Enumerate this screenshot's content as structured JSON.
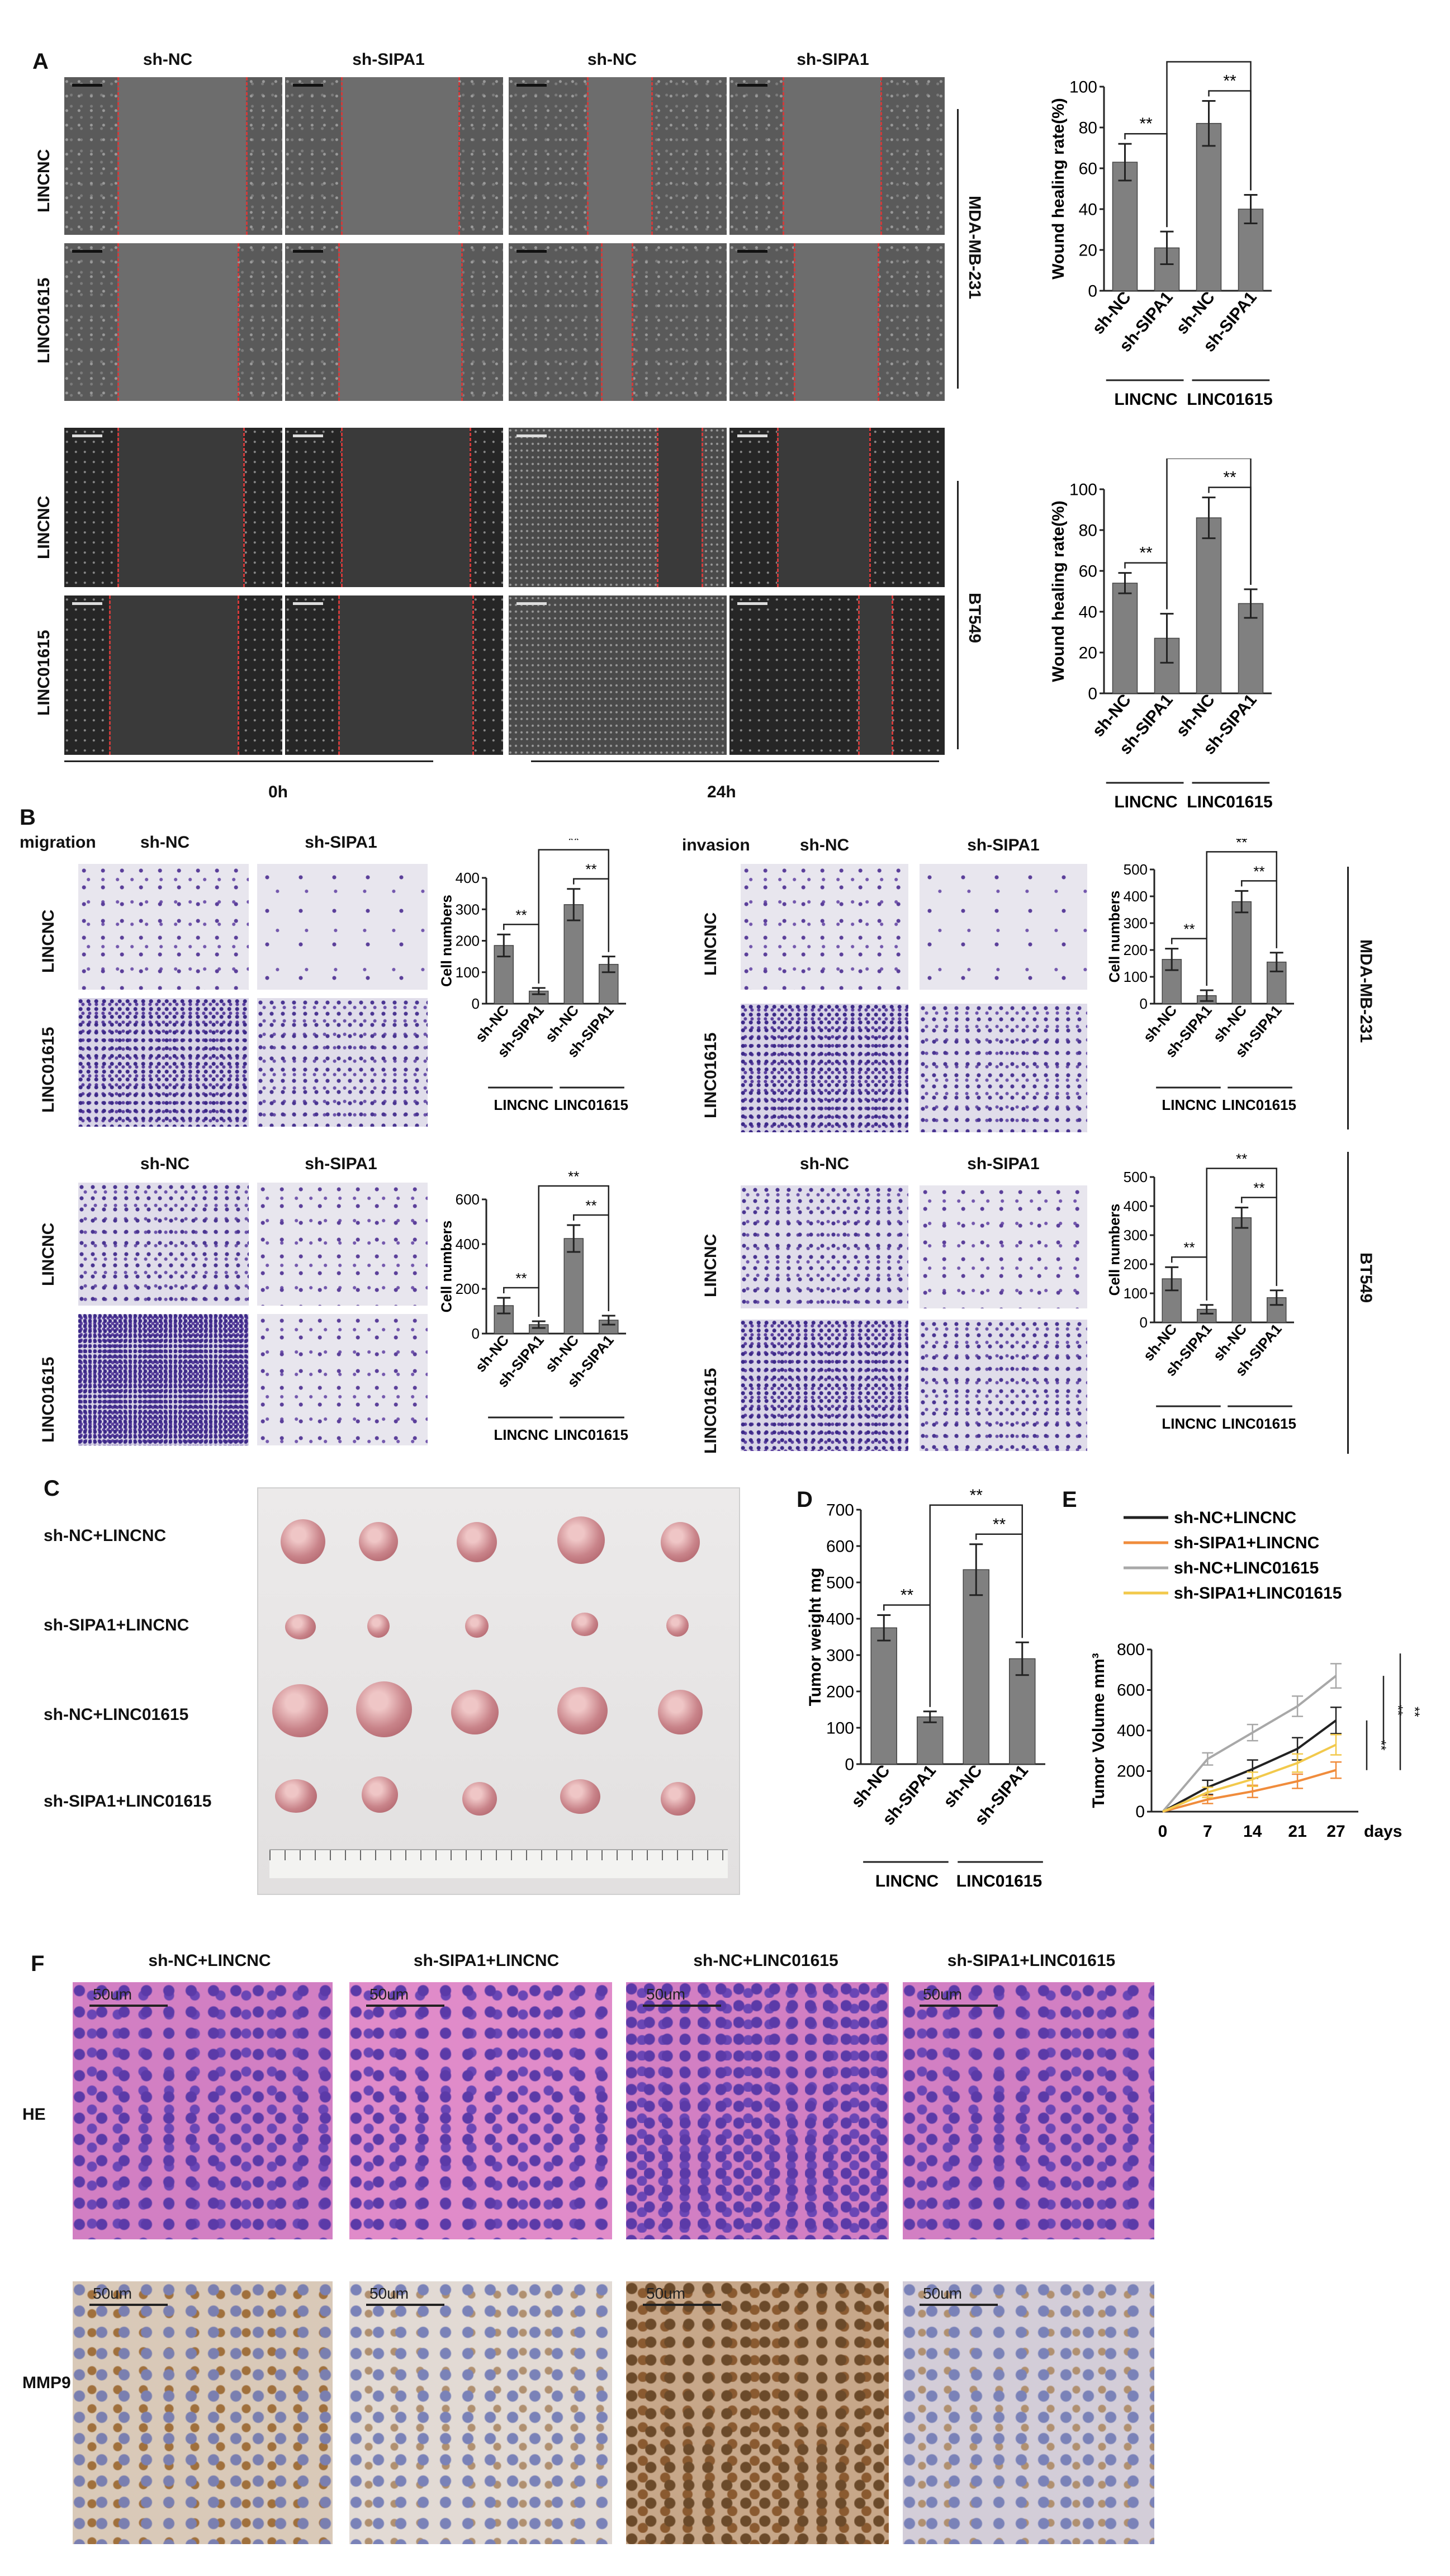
{
  "panels": {
    "A": "A",
    "B": "B",
    "C": "C",
    "D": "D",
    "E": "E",
    "F": "F"
  },
  "headers": {
    "sh_nc": "sh-NC",
    "sh_sipa1": "sh-SIPA1"
  },
  "rows": {
    "lincnc": "LINCNC",
    "linc01615": "LINC01615"
  },
  "cell_lines": {
    "mda": "MDA-MB-231",
    "bt549": "BT549"
  },
  "timepoints": {
    "t0": "0h",
    "t24": "24h"
  },
  "panel_b": {
    "migration": "migration",
    "invasion": "invasion"
  },
  "panel_c": {
    "groups": [
      "sh-NC+LINCNC",
      "sh-SIPA1+LINCNC",
      "sh-NC+LINC01615",
      "sh-SIPA1+LINC01615"
    ]
  },
  "panel_f": {
    "groups": [
      "sh-NC+LINCNC",
      "sh-SIPA1+LINCNC",
      "sh-NC+LINC01615",
      "sh-SIPA1+LINC01615"
    ],
    "he": "HE",
    "mmp9": "MMP9",
    "scale": "50um"
  },
  "sig": "**",
  "colors": {
    "bar": "#808080",
    "error": "#222222",
    "lincnc_line": "#222222",
    "sipa1_lincnc_line": "#f08c3c",
    "nc_linc01615_line": "#a8a8a8",
    "sipa1_linc01615_line": "#f2c94c"
  },
  "chart_data": [
    {
      "id": "A_mda",
      "type": "bar",
      "ylabel": "Wound healing rate(%)",
      "ylim": [
        0,
        100
      ],
      "yticks": [
        0,
        20,
        40,
        60,
        80,
        100
      ],
      "categories": [
        "sh-NC",
        "sh-SIPA1",
        "sh-NC",
        "sh-SIPA1"
      ],
      "groups": [
        "LINCNC",
        "LINC01615"
      ],
      "values": [
        63,
        21,
        82,
        40
      ],
      "errors": [
        9,
        8,
        11,
        7
      ],
      "sig_pairs": [
        [
          0,
          1
        ],
        [
          2,
          3
        ],
        [
          1,
          3
        ]
      ]
    },
    {
      "id": "A_bt549",
      "type": "bar",
      "ylabel": "Wound healing rate(%)",
      "ylim": [
        0,
        100
      ],
      "yticks": [
        0,
        20,
        40,
        60,
        80,
        100
      ],
      "categories": [
        "sh-NC",
        "sh-SIPA1",
        "sh-NC",
        "sh-SIPA1"
      ],
      "groups": [
        "LINCNC",
        "LINC01615"
      ],
      "values": [
        54,
        27,
        86,
        44
      ],
      "errors": [
        5,
        12,
        10,
        7
      ],
      "sig_pairs": [
        [
          0,
          1
        ],
        [
          2,
          3
        ],
        [
          1,
          3
        ]
      ]
    },
    {
      "id": "B_mig_mda",
      "type": "bar",
      "ylabel": "Cell numbers",
      "ylim": [
        0,
        400
      ],
      "yticks": [
        0,
        100,
        200,
        300,
        400
      ],
      "categories": [
        "sh-NC",
        "sh-SIPA1",
        "sh-NC",
        "sh-SIPA1"
      ],
      "groups": [
        "LINCNC",
        "LINC01615"
      ],
      "values": [
        185,
        40,
        315,
        125
      ],
      "errors": [
        35,
        10,
        50,
        25
      ],
      "sig_pairs": [
        [
          0,
          1
        ],
        [
          2,
          3
        ],
        [
          1,
          3
        ]
      ]
    },
    {
      "id": "B_inv_mda",
      "type": "bar",
      "ylabel": "Cell numbers",
      "ylim": [
        0,
        500
      ],
      "yticks": [
        0,
        100,
        200,
        300,
        400,
        500
      ],
      "categories": [
        "sh-NC",
        "sh-SIPA1",
        "sh-NC",
        "sh-SIPA1"
      ],
      "groups": [
        "LINCNC",
        "LINC01615"
      ],
      "values": [
        165,
        30,
        380,
        155
      ],
      "errors": [
        40,
        20,
        40,
        35
      ],
      "sig_pairs": [
        [
          0,
          1
        ],
        [
          2,
          3
        ],
        [
          1,
          3
        ]
      ]
    },
    {
      "id": "B_mig_bt549",
      "type": "bar",
      "ylabel": "Cell numbers",
      "ylim": [
        0,
        600
      ],
      "yticks": [
        0,
        200,
        400,
        600
      ],
      "categories": [
        "sh-NC",
        "sh-SIPA1",
        "sh-NC",
        "sh-SIPA1"
      ],
      "groups": [
        "LINCNC",
        "LINC01615"
      ],
      "values": [
        125,
        40,
        425,
        60
      ],
      "errors": [
        35,
        15,
        60,
        20
      ],
      "sig_pairs": [
        [
          0,
          1
        ],
        [
          2,
          3
        ],
        [
          1,
          3
        ]
      ]
    },
    {
      "id": "B_inv_bt549",
      "type": "bar",
      "ylabel": "Cell numbers",
      "ylim": [
        0,
        500
      ],
      "yticks": [
        0,
        100,
        200,
        300,
        400,
        500
      ],
      "categories": [
        "sh-NC",
        "sh-SIPA1",
        "sh-NC",
        "sh-SIPA1"
      ],
      "groups": [
        "LINCNC",
        "LINC01615"
      ],
      "values": [
        150,
        45,
        360,
        85
      ],
      "errors": [
        40,
        15,
        35,
        25
      ],
      "sig_pairs": [
        [
          0,
          1
        ],
        [
          2,
          3
        ],
        [
          1,
          3
        ]
      ]
    },
    {
      "id": "D",
      "type": "bar",
      "ylabel": "Tumor weight mg",
      "ylim": [
        0,
        700
      ],
      "yticks": [
        0,
        100,
        200,
        300,
        400,
        500,
        600,
        700
      ],
      "categories": [
        "sh-NC",
        "sh-SIPA1",
        "sh-NC",
        "sh-SIPA1"
      ],
      "groups": [
        "LINCNC",
        "LINC01615"
      ],
      "values": [
        375,
        130,
        535,
        290
      ],
      "errors": [
        35,
        15,
        70,
        45
      ],
      "sig_pairs": [
        [
          0,
          1
        ],
        [
          2,
          3
        ],
        [
          1,
          3
        ]
      ]
    },
    {
      "id": "E",
      "type": "line",
      "ylabel": "Tumor Volume mm³",
      "xlabel": "days",
      "ylim": [
        0,
        800
      ],
      "yticks": [
        0,
        200,
        400,
        600,
        800
      ],
      "x": [
        0,
        7,
        14,
        21,
        27
      ],
      "series": [
        {
          "name": "sh-NC+LINCNC",
          "values": [
            0,
            120,
            210,
            310,
            450
          ],
          "errors": [
            0,
            35,
            45,
            55,
            65
          ]
        },
        {
          "name": "sh-SIPA1+LINCNC",
          "values": [
            0,
            60,
            100,
            150,
            205
          ],
          "errors": [
            0,
            20,
            30,
            35,
            40
          ]
        },
        {
          "name": "sh-NC+LINC01615",
          "values": [
            0,
            260,
            390,
            520,
            670
          ],
          "errors": [
            0,
            30,
            40,
            50,
            60
          ]
        },
        {
          "name": "sh-SIPA1+LINC01615",
          "values": [
            0,
            95,
            160,
            240,
            330
          ],
          "errors": [
            0,
            25,
            35,
            45,
            50
          ]
        }
      ],
      "sig": [
        "**",
        "**",
        "**"
      ]
    }
  ]
}
